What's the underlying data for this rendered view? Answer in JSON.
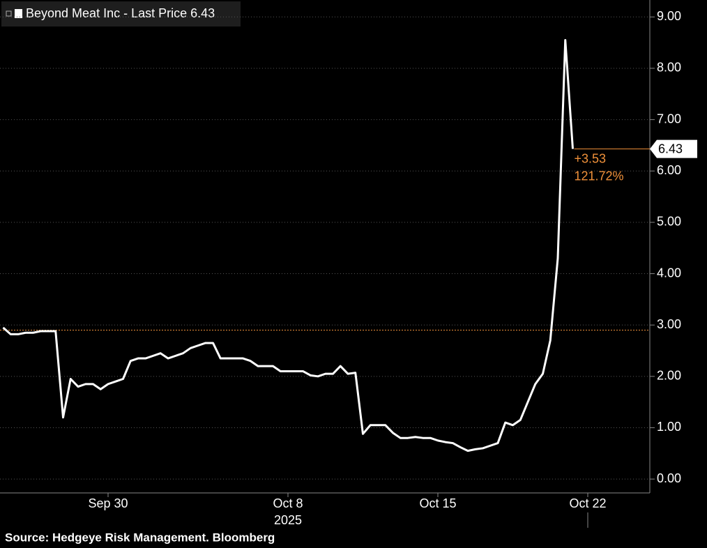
{
  "chart_data": {
    "type": "line",
    "series": [
      {
        "name": "Beyond Meat Inc - Last Price 6.43",
        "color": "#ffffff",
        "values": [
          2.95,
          2.82,
          2.82,
          2.85,
          2.85,
          2.88,
          2.88,
          2.88,
          1.2,
          1.95,
          1.8,
          1.85,
          1.85,
          1.75,
          1.85,
          1.9,
          1.95,
          2.3,
          2.35,
          2.35,
          2.4,
          2.45,
          2.35,
          2.4,
          2.45,
          2.55,
          2.6,
          2.65,
          2.65,
          2.35,
          2.35,
          2.35,
          2.35,
          2.3,
          2.2,
          2.2,
          2.2,
          2.1,
          2.1,
          2.1,
          2.1,
          2.02,
          2.0,
          2.05,
          2.05,
          2.2,
          2.05,
          2.07,
          0.88,
          1.05,
          1.05,
          1.05,
          0.9,
          0.8,
          0.8,
          0.82,
          0.8,
          0.8,
          0.75,
          0.72,
          0.7,
          0.62,
          0.55,
          0.58,
          0.6,
          0.65,
          0.7,
          1.1,
          1.05,
          1.15,
          1.5,
          1.85,
          2.05,
          2.7,
          4.3,
          8.55,
          6.43,
          null,
          null,
          null,
          null,
          null,
          null,
          null,
          null,
          null,
          null
        ]
      }
    ],
    "categories": [
      null,
      null,
      null,
      null,
      null,
      null,
      null,
      null,
      null,
      null,
      null,
      null,
      null,
      null,
      "Sep 30",
      null,
      null,
      null,
      null,
      null,
      null,
      null,
      null,
      null,
      null,
      null,
      null,
      null,
      null,
      null,
      null,
      null,
      null,
      null,
      null,
      null,
      null,
      null,
      "Oct 8",
      null,
      null,
      null,
      null,
      null,
      null,
      null,
      null,
      null,
      null,
      null,
      null,
      null,
      null,
      null,
      null,
      null,
      null,
      null,
      "Oct 15",
      null,
      null,
      null,
      null,
      null,
      null,
      null,
      null,
      null,
      null,
      null,
      null,
      null,
      null,
      null,
      null,
      null,
      null,
      null,
      "Oct 22",
      null,
      null,
      null,
      null,
      null,
      null,
      null,
      null
    ],
    "year_label": "2025",
    "ylim": [
      -0.27,
      9.33
    ],
    "yticks": [
      {
        "value": 0,
        "label": "0.00"
      },
      {
        "value": 1,
        "label": "1.00"
      },
      {
        "value": 2,
        "label": "2.00"
      },
      {
        "value": 3,
        "label": "3.00"
      },
      {
        "value": 4,
        "label": "4.00"
      },
      {
        "value": 5,
        "label": "5.00"
      },
      {
        "value": 6,
        "label": "6.00"
      },
      {
        "value": 7,
        "label": "7.00"
      },
      {
        "value": 8,
        "label": "8.00"
      },
      {
        "value": 9,
        "label": "9.00"
      }
    ],
    "grid": true,
    "last_price": 6.43,
    "change": "+3.53",
    "change_pct": "121.72%",
    "reference_line": 2.9,
    "accent_color": "#f0913a",
    "source": "Source: Hedgeye Risk Management. Bloomberg"
  }
}
